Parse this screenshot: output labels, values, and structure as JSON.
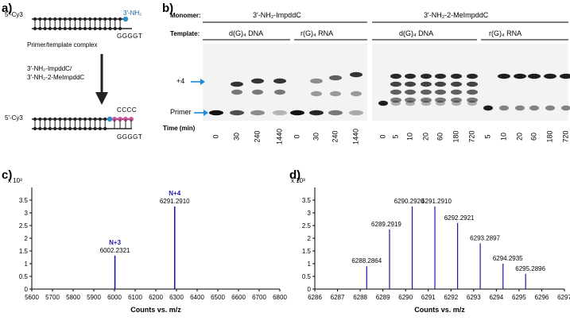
{
  "panels": {
    "a": "a)",
    "b": "b)",
    "c": "c)",
    "d": "d)"
  },
  "scheme": {
    "label_5p": "5′-Cy3",
    "nh2_label": "3′-NH₂",
    "template_seq": "GGGGT",
    "complex_label": "Primer/template complex",
    "monomer_line1": "3′-NH₂-ImpddC/",
    "monomer_line2": "3′-NH₂-2-MeImpddC",
    "product_seq": "CCCC"
  },
  "gel": {
    "monomer_label": "Monomer:",
    "template_label": "Template:",
    "monomer_1": "3′-NH₂-ImpddC",
    "monomer_2": "3′-NH₂-2-MeImpddC",
    "template_dna": "d(G)₄ DNA",
    "template_rna": "r(G)₄ RNA",
    "plus4_label": "+4",
    "primer_label": "Primer",
    "time_label": "Time (min)",
    "times_a": [
      "0",
      "30",
      "240",
      "1440"
    ],
    "times_b": [
      "0",
      "5",
      "10",
      "20",
      "60",
      "180",
      "720"
    ],
    "colors": {
      "arrow": "#1e88d8",
      "band": "#111111"
    }
  },
  "spectrum_c": {
    "chart_data": {
      "type": "bar",
      "xlabel": "Counts vs. m/z",
      "ylabel": "x 10³",
      "xlim": [
        5600,
        6800
      ],
      "ylim": [
        0,
        4
      ],
      "xticks": [
        "5600",
        "5700",
        "5800",
        "5900",
        "6000",
        "6100",
        "6200",
        "6300",
        "6400",
        "6500",
        "6600",
        "6700",
        "6800"
      ],
      "yticks": [
        "0",
        "0.5",
        "1",
        "1.5",
        "2",
        "2.5",
        "3",
        "3.5"
      ],
      "x": [
        6002.2321,
        6291.291
      ],
      "values": [
        1.32,
        3.25
      ],
      "peak_labels": [
        "6002.2321",
        "6291.2910"
      ],
      "peak_names": [
        "N+3",
        "N+4"
      ],
      "color": "#1a1aa8"
    }
  },
  "spectrum_d": {
    "chart_data": {
      "type": "bar",
      "xlabel": "Counts vs. m/z",
      "ylabel": "x 10³",
      "xlim": [
        6286,
        6297
      ],
      "ylim": [
        0,
        4
      ],
      "xticks": [
        "6286",
        "6287",
        "6288",
        "6289",
        "6290",
        "6291",
        "6292",
        "6293",
        "6294",
        "6295",
        "6296",
        "6297"
      ],
      "yticks": [
        "0",
        "0.5",
        "1",
        "1.5",
        "2",
        "2.5",
        "3",
        "3.5"
      ],
      "x": [
        6288.2864,
        6289.2919,
        6290.292,
        6291.291,
        6292.2921,
        6293.2897,
        6294.2935,
        6295.2896
      ],
      "values": [
        0.9,
        2.35,
        3.25,
        3.25,
        2.6,
        1.8,
        1.0,
        0.6
      ],
      "peak_labels": [
        "6288.2864",
        "6289.2919",
        "6290.2920",
        "6291.2910",
        "6292.2921",
        "6293.2897",
        "6294.2935",
        "6295.2896"
      ],
      "color": "#1a1aa8"
    }
  }
}
